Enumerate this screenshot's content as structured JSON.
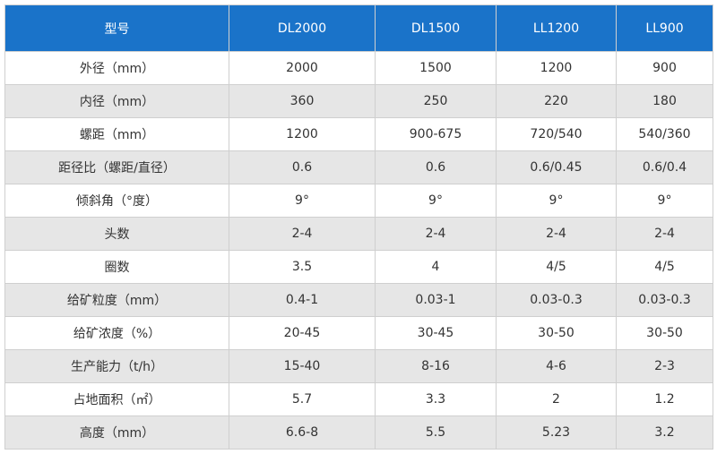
{
  "table": {
    "header": [
      "型号",
      "DL2000",
      "DL1500",
      "LL1200",
      "LL900"
    ],
    "rows": [
      [
        "外径（mm）",
        "2000",
        "1500",
        "1200",
        "900"
      ],
      [
        "内径（mm）",
        "360",
        "250",
        "220",
        "180"
      ],
      [
        "螺距（mm）",
        "1200",
        "900-675",
        "720/540",
        "540/360"
      ],
      [
        "距径比（螺距/直径）",
        "0.6",
        "0.6",
        "0.6/0.45",
        "0.6/0.4"
      ],
      [
        "倾斜角（°度）",
        "9°",
        "9°",
        "9°",
        "9°"
      ],
      [
        "头数",
        "2-4",
        "2-4",
        "2-4",
        "2-4"
      ],
      [
        "圈数",
        "3.5",
        "4",
        "4/5",
        "4/5"
      ],
      [
        "给矿粒度（mm）",
        "0.4-1",
        "0.03-1",
        "0.03-0.3",
        "0.03-0.3"
      ],
      [
        "给矿浓度（%）",
        "20-45",
        "30-45",
        "30-50",
        "30-50"
      ],
      [
        "生产能力（t/h）",
        "15-40",
        "8-16",
        "4-6",
        "2-3"
      ],
      [
        "占地面积（㎡）",
        "5.7",
        "3.3",
        "2",
        "1.2"
      ],
      [
        "高度（mm）",
        "6.6-8",
        "5.5",
        "5.23",
        "3.2"
      ]
    ]
  }
}
